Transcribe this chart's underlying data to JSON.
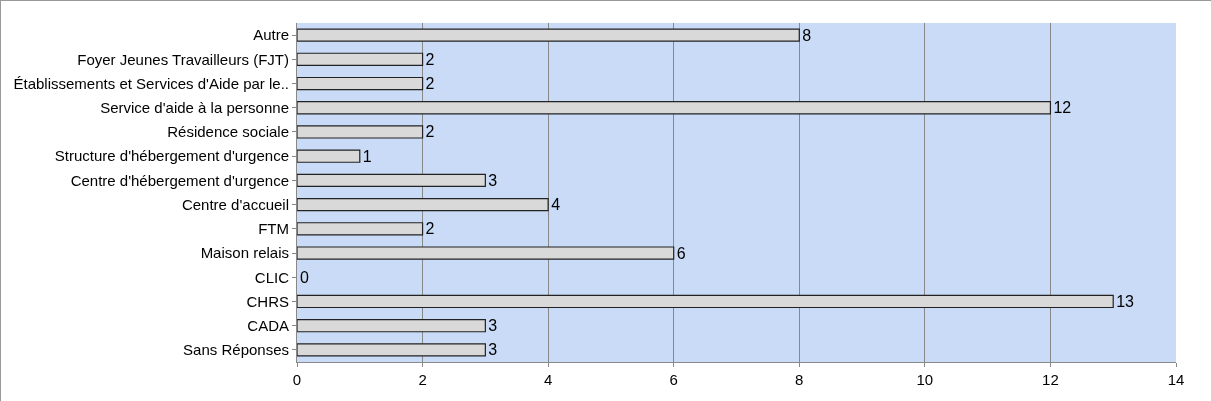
{
  "chart_data": {
    "type": "bar",
    "orientation": "horizontal",
    "categories": [
      "Autre",
      "Foyer Jeunes Travailleurs (FJT)",
      "Établissements et Services d'Aide par le..",
      "Service d'aide à la personne",
      "Résidence sociale",
      "Structure d'hébergement d'urgence",
      "Centre d'hébergement d'urgence",
      "Centre d'accueil",
      "FTM",
      "Maison relais",
      "CLIC",
      "CHRS",
      "CADA",
      "Sans Réponses"
    ],
    "values": [
      8,
      2,
      2,
      12,
      2,
      1,
      3,
      4,
      2,
      6,
      0,
      13,
      3,
      3
    ],
    "color": "#d9d9d9",
    "xlim": [
      0,
      14
    ],
    "xticks": [
      0,
      2,
      4,
      6,
      8,
      10,
      12,
      14
    ],
    "grid": "x",
    "data_labels": true
  }
}
